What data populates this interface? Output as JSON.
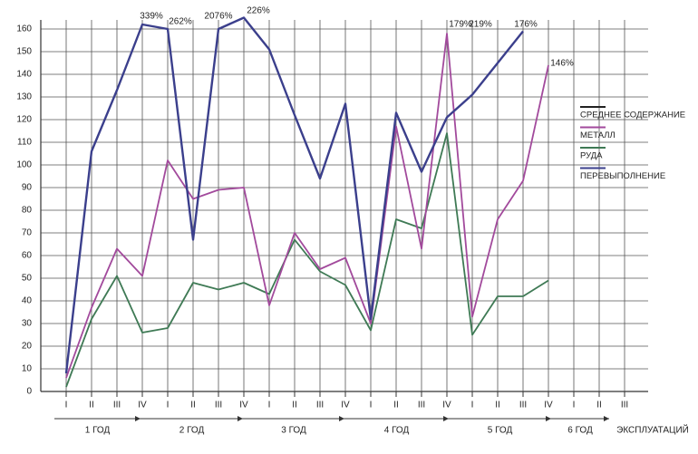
{
  "chart_data": {
    "type": "line",
    "categories": [
      "I",
      "II",
      "III",
      "IV",
      "I",
      "II",
      "III",
      "IV",
      "I",
      "II",
      "III",
      "IV",
      "I",
      "II",
      "III",
      "IV",
      "I",
      "II",
      "III",
      "IV",
      "I",
      "II",
      "III"
    ],
    "groups": [
      "1 ГОД",
      "2 ГОД",
      "3 ГОД",
      "4 ГОД",
      "5 ГОД",
      "6 ГОД",
      "ЭКСПЛУАТАЦИЙ"
    ],
    "series": [
      {
        "name": "СРЕДНЕЕ СОДЕРЖАНИЕ",
        "color": "#222222",
        "values": [
          null,
          null,
          null,
          null,
          null,
          null,
          null,
          null,
          null,
          null,
          null,
          null,
          null,
          null,
          null,
          null,
          null,
          null,
          null,
          null,
          null,
          null,
          null
        ]
      },
      {
        "name": "МЕТАЛЛ",
        "color": "#a24a9c",
        "values": [
          6,
          37,
          63,
          51,
          102,
          85,
          89,
          90,
          38,
          70,
          54,
          59,
          30,
          117,
          63,
          158,
          33,
          76,
          93,
          144,
          null,
          null,
          null
        ]
      },
      {
        "name": "РУДА",
        "color": "#3f7a55",
        "values": [
          2,
          32,
          51,
          26,
          28,
          48,
          45,
          48,
          43,
          67,
          53,
          47,
          27,
          76,
          72,
          114,
          25,
          42,
          42,
          49,
          null,
          null,
          null
        ]
      },
      {
        "name": "ПЕРЕВЫПОЛНЕНИЕ",
        "color": "#3b3f8c",
        "values": [
          8,
          106,
          133,
          162,
          160,
          67,
          160,
          165,
          151,
          122,
          94,
          127,
          32,
          123,
          97,
          121,
          131,
          145,
          159,
          null,
          null,
          null,
          null
        ]
      }
    ],
    "annotations": [
      "339%",
      "262%",
      "2076%",
      "226%",
      "179%",
      "219%",
      "176%",
      "146%"
    ],
    "ylim": [
      0,
      160
    ],
    "yticks": [
      0,
      10,
      20,
      30,
      40,
      50,
      60,
      70,
      80,
      90,
      100,
      110,
      120,
      130,
      140,
      150,
      160
    ],
    "grid": true
  }
}
